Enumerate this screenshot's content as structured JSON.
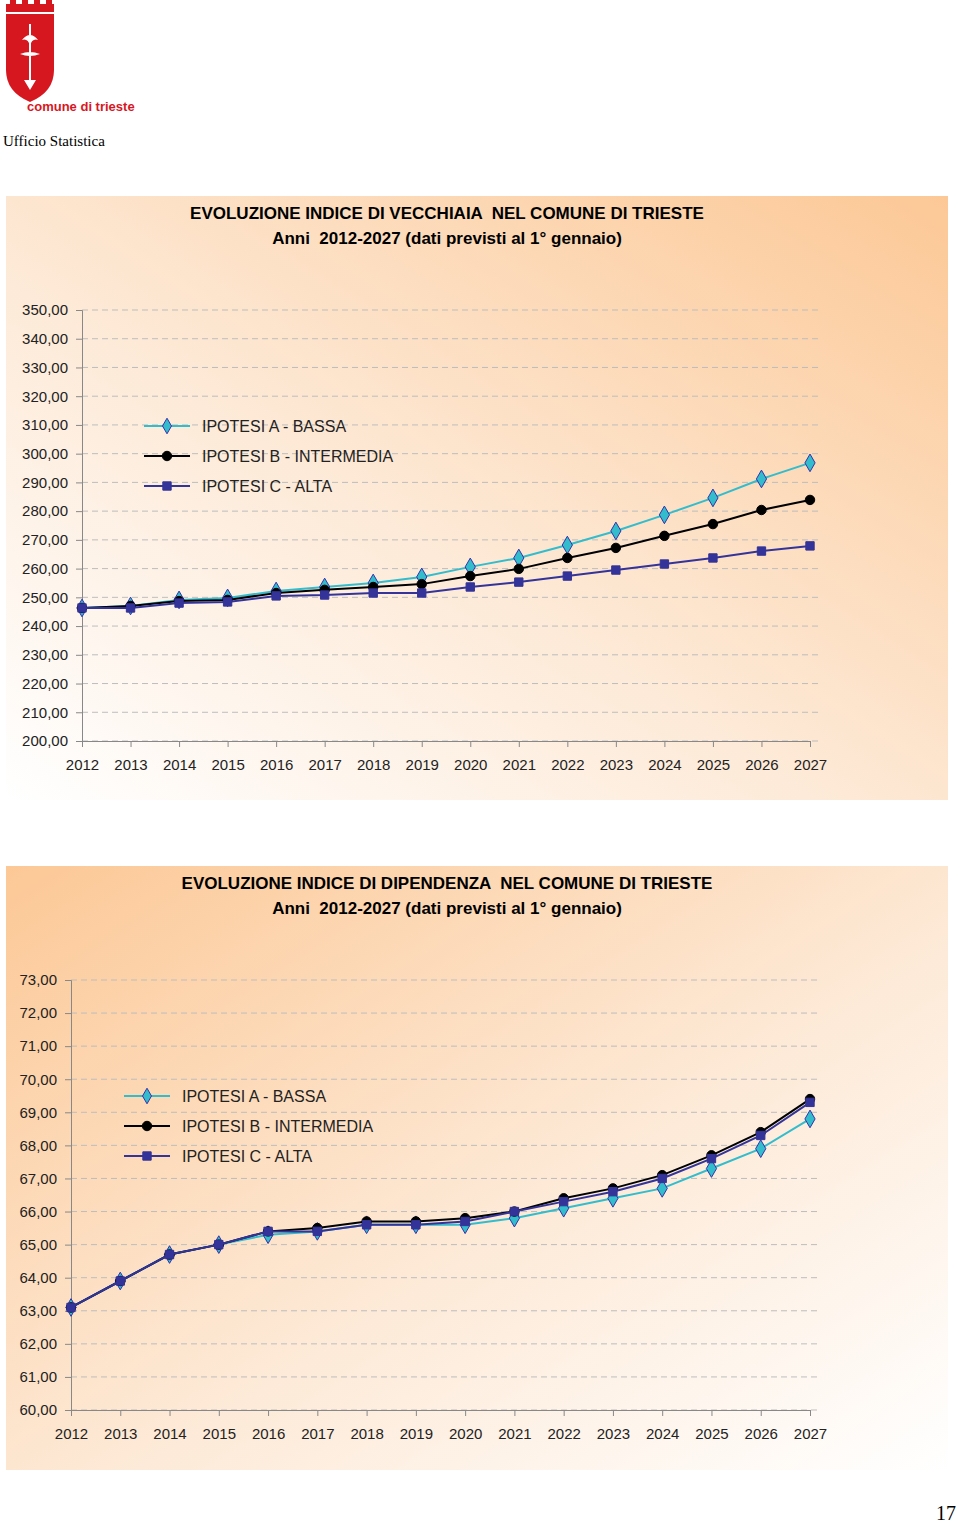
{
  "header": {
    "logo_text": "comune di trieste",
    "office": "Ufficio Statistica"
  },
  "page_number": "17",
  "chart_data": [
    {
      "type": "line",
      "title": "EVOLUZIONE INDICE DI VECCHIAIA  NEL COMUNE DI TRIESTE",
      "subtitle": "Anni  2012-2027 (dati previsti al 1° gennaio)",
      "categories": [
        "2012",
        "2013",
        "2014",
        "2015",
        "2016",
        "2017",
        "2018",
        "2019",
        "2020",
        "2021",
        "2022",
        "2023",
        "2024",
        "2025",
        "2026",
        "2027"
      ],
      "series": [
        {
          "name": "IPOTESI A - BASSA",
          "color": "#33bccc",
          "marker": "diamond",
          "values": [
            246.3,
            247.0,
            249.1,
            249.8,
            252.2,
            253.6,
            255.0,
            257.1,
            260.6,
            263.7,
            268.2,
            273.1,
            278.7,
            284.6,
            291.2,
            296.8
          ]
        },
        {
          "name": "IPOTESI B - INTERMEDIA",
          "color": "#000000",
          "marker": "circle",
          "values": [
            246.3,
            247.0,
            248.7,
            249.1,
            251.5,
            252.6,
            253.6,
            254.6,
            257.4,
            259.9,
            263.7,
            267.2,
            271.4,
            275.5,
            280.4,
            283.9
          ]
        },
        {
          "name": "IPOTESI C - ALTA",
          "color": "#333399",
          "marker": "square",
          "values": [
            246.3,
            246.3,
            248.0,
            248.4,
            250.5,
            250.8,
            251.5,
            251.5,
            253.6,
            255.3,
            257.4,
            259.5,
            261.6,
            263.7,
            266.1,
            267.9
          ]
        }
      ],
      "ylim": [
        200,
        350
      ],
      "yticks": [
        {
          "value": 200,
          "label": "200,00"
        },
        {
          "value": 210,
          "label": "210,00"
        },
        {
          "value": 220,
          "label": "220,00"
        },
        {
          "value": 230,
          "label": "230,00"
        },
        {
          "value": 240,
          "label": "240,00"
        },
        {
          "value": 250,
          "label": "250,00"
        },
        {
          "value": 260,
          "label": "260,00"
        },
        {
          "value": 270,
          "label": "270,00"
        },
        {
          "value": 280,
          "label": "280,00"
        },
        {
          "value": 290,
          "label": "290,00"
        },
        {
          "value": 300,
          "label": "300,00"
        },
        {
          "value": 310,
          "label": "310,00"
        },
        {
          "value": 320,
          "label": "320,00"
        },
        {
          "value": 330,
          "label": "330,00"
        },
        {
          "value": 340,
          "label": "340,00"
        },
        {
          "value": 350,
          "label": "350,00"
        }
      ],
      "grid": true,
      "legend": "upper left"
    },
    {
      "type": "line",
      "title": "EVOLUZIONE INDICE DI DIPENDENZA  NEL COMUNE DI TRIESTE",
      "subtitle": "Anni  2012-2027 (dati previsti al 1° gennaio)",
      "categories": [
        "2012",
        "2013",
        "2014",
        "2015",
        "2016",
        "2017",
        "2018",
        "2019",
        "2020",
        "2021",
        "2022",
        "2023",
        "2024",
        "2025",
        "2026",
        "2027"
      ],
      "series": [
        {
          "name": "IPOTESI A - BASSA",
          "color": "#33bccc",
          "marker": "diamond",
          "values": [
            63.1,
            63.9,
            64.7,
            65.0,
            65.3,
            65.4,
            65.6,
            65.6,
            65.6,
            65.8,
            66.1,
            66.4,
            66.7,
            67.3,
            67.9,
            68.8
          ]
        },
        {
          "name": "IPOTESI B - INTERMEDIA",
          "color": "#000000",
          "marker": "circle",
          "values": [
            63.1,
            63.9,
            64.7,
            65.0,
            65.4,
            65.5,
            65.7,
            65.7,
            65.8,
            66.0,
            66.4,
            66.7,
            67.1,
            67.7,
            68.4,
            69.4
          ]
        },
        {
          "name": "IPOTESI C - ALTA",
          "color": "#333399",
          "marker": "square",
          "values": [
            63.1,
            63.9,
            64.7,
            65.0,
            65.4,
            65.4,
            65.6,
            65.6,
            65.7,
            66.0,
            66.3,
            66.6,
            67.0,
            67.6,
            68.3,
            69.3
          ]
        }
      ],
      "ylim": [
        60,
        73
      ],
      "yticks": [
        {
          "value": 60,
          "label": "60,00"
        },
        {
          "value": 61,
          "label": "61,00"
        },
        {
          "value": 62,
          "label": "62,00"
        },
        {
          "value": 63,
          "label": "63,00"
        },
        {
          "value": 64,
          "label": "64,00"
        },
        {
          "value": 65,
          "label": "65,00"
        },
        {
          "value": 66,
          "label": "66,00"
        },
        {
          "value": 67,
          "label": "67,00"
        },
        {
          "value": 68,
          "label": "68,00"
        },
        {
          "value": 69,
          "label": "69,00"
        },
        {
          "value": 70,
          "label": "70,00"
        },
        {
          "value": 71,
          "label": "71,00"
        },
        {
          "value": 72,
          "label": "72,00"
        },
        {
          "value": 73,
          "label": "73,00"
        }
      ],
      "grid": true,
      "legend": "upper left"
    }
  ]
}
